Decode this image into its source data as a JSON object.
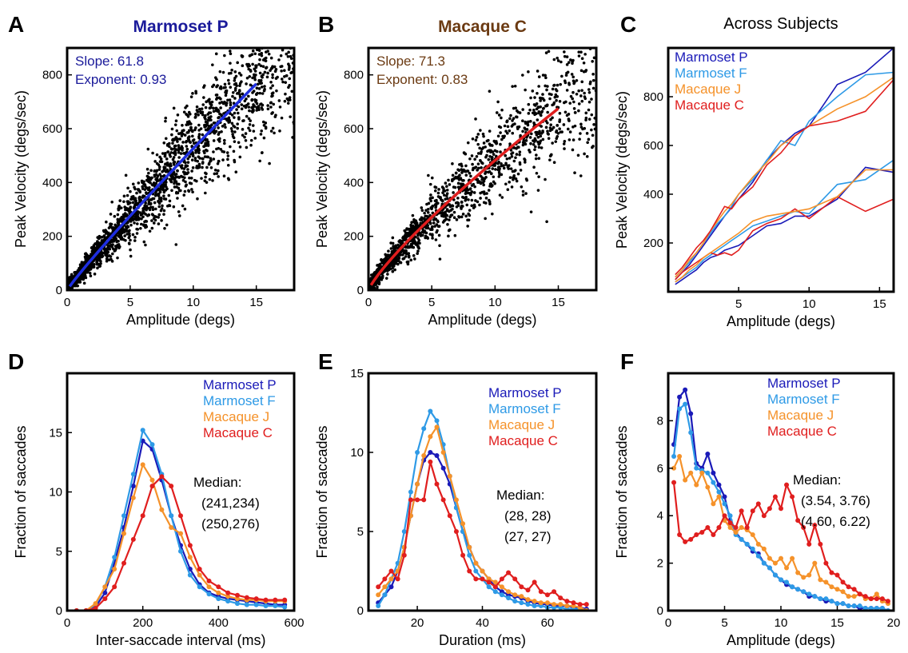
{
  "colors": {
    "marmoset_p": "#1a1ab8",
    "marmoset_f": "#2e9ae6",
    "macaque_j": "#f5922a",
    "macaque_c": "#e01e1e",
    "panel_a_title": "#1a1a9a",
    "panel_b_title": "#6b3a12",
    "fit_a": "#1e2ee0",
    "fit_b": "#e01e1e",
    "text": "#000000"
  },
  "chart_data": [
    {
      "id": "A",
      "type": "scatter",
      "panel_letter": "A",
      "title": "Marmoset P",
      "xlabel": "Amplitude (degs)",
      "ylabel": "Peak Velocity (degs/sec)",
      "xlim": [
        0,
        18
      ],
      "ylim": [
        0,
        900
      ],
      "xticks": [
        0,
        5,
        10,
        15
      ],
      "yticks": [
        0,
        200,
        400,
        600,
        800
      ],
      "annotation": [
        "Slope:  61.8",
        "Exponent: 0.93"
      ],
      "fit": {
        "slope": 61.8,
        "exponent": 0.93,
        "xmin": 0.2,
        "xmax": 15
      },
      "scatter": {
        "n": 2200,
        "xmax": 18,
        "scale": 1.0,
        "note_points": "dense cloud around the fit line"
      }
    },
    {
      "id": "B",
      "type": "scatter",
      "panel_letter": "B",
      "title": "Macaque C",
      "xlabel": "Amplitude (degs)",
      "ylabel": "Peak Velocity (degs/sec)",
      "xlim": [
        0,
        18
      ],
      "ylim": [
        0,
        900
      ],
      "xticks": [
        0,
        5,
        10,
        15
      ],
      "yticks": [
        0,
        200,
        400,
        600,
        800
      ],
      "annotation": [
        "Slope:  71.3",
        "Exponent: 0.83"
      ],
      "fit": {
        "slope": 71.3,
        "exponent": 0.83,
        "xmin": 0.2,
        "xmax": 15
      },
      "scatter": {
        "n": 1500,
        "xmax": 18,
        "scale": 1.0
      }
    },
    {
      "id": "C",
      "type": "line",
      "panel_letter": "C",
      "title": "Across Subjects",
      "xlabel": "Amplitude (degs)",
      "ylabel": "Peak Velocity (degs/sec)",
      "xlim": [
        0,
        16
      ],
      "ylim": [
        0,
        1000
      ],
      "xticks": [
        5,
        10,
        15
      ],
      "yticks": [
        200,
        400,
        600,
        800
      ],
      "legend": [
        "Marmoset P",
        "Marmoset F",
        "Macaque J",
        "Macaque C"
      ],
      "x": [
        0.5,
        1,
        1.5,
        2,
        2.5,
        3,
        3.5,
        4,
        4.5,
        5,
        6,
        7,
        8,
        9,
        10,
        12,
        14,
        16
      ],
      "series": [
        {
          "name": "Marmoset P",
          "color_key": "marmoset_p",
          "upper": [
            50,
            80,
            110,
            150,
            190,
            230,
            270,
            310,
            345,
            380,
            450,
            540,
            600,
            650,
            680,
            850,
            900,
            1000
          ],
          "lower": [
            30,
            50,
            70,
            90,
            120,
            140,
            150,
            170,
            180,
            190,
            230,
            270,
            280,
            310,
            310,
            380,
            510,
            490
          ]
        },
        {
          "name": "Marmoset F",
          "color_key": "marmoset_f",
          "upper": [
            60,
            90,
            120,
            160,
            200,
            240,
            280,
            310,
            350,
            400,
            460,
            540,
            620,
            600,
            700,
            800,
            890,
            900
          ],
          "lower": [
            40,
            60,
            80,
            100,
            130,
            150,
            170,
            190,
            210,
            230,
            270,
            290,
            310,
            330,
            320,
            440,
            460,
            540
          ]
        },
        {
          "name": "Macaque J",
          "color_key": "macaque_j",
          "upper": [
            60,
            90,
            130,
            160,
            200,
            250,
            290,
            330,
            360,
            400,
            470,
            530,
            600,
            640,
            680,
            750,
            800,
            880
          ]
        },
        {
          "name": "Macaque C",
          "color_key": "macaque_c",
          "upper": [
            70,
            100,
            140,
            180,
            210,
            250,
            300,
            350,
            340,
            380,
            430,
            520,
            570,
            640,
            680,
            700,
            740,
            870
          ],
          "lower": [
            50,
            80,
            100,
            120,
            140,
            160,
            150,
            160,
            150,
            170,
            250,
            280,
            300,
            340,
            300,
            390,
            330,
            380
          ]
        }
      ],
      "extra_lower_j": [
        40,
        60,
        90,
        110,
        140,
        160,
        180,
        200,
        220,
        240,
        290,
        310,
        320,
        330,
        340,
        390,
        500,
        500
      ]
    },
    {
      "id": "D",
      "type": "line",
      "panel_letter": "D",
      "xlabel": "Inter-saccade interval (ms)",
      "ylabel": "Fraction of saccades",
      "xlim": [
        0,
        600
      ],
      "ylim": [
        0,
        20
      ],
      "xticks": [
        0,
        200,
        400,
        600
      ],
      "yticks": [
        0,
        5,
        10,
        15
      ],
      "legend": [
        "Marmoset P",
        "Marmoset F",
        "Macaque J",
        "Macaque C"
      ],
      "median_label": "Median:",
      "median_lines": [
        "(241,234)",
        "(250,276)"
      ],
      "x": [
        25,
        50,
        75,
        100,
        125,
        150,
        175,
        200,
        225,
        250,
        275,
        300,
        325,
        350,
        375,
        400,
        425,
        450,
        475,
        500,
        525,
        550,
        575
      ],
      "series": [
        {
          "name": "Marmoset P",
          "color_key": "marmoset_p",
          "values": [
            0,
            0,
            0.3,
            1.5,
            4,
            7,
            10.5,
            14.3,
            13.6,
            11,
            8,
            5.5,
            3.5,
            2.2,
            1.5,
            1.2,
            1,
            0.9,
            0.8,
            0.7,
            0.6,
            0.5,
            0.5
          ]
        },
        {
          "name": "Marmoset F",
          "color_key": "marmoset_f",
          "values": [
            0,
            0,
            0.5,
            2,
            4.5,
            8,
            11.5,
            15.2,
            14,
            11.5,
            8,
            5,
            3,
            2,
            1.4,
            1,
            0.8,
            0.6,
            0.5,
            0.5,
            0.4,
            0.4,
            0.3
          ]
        },
        {
          "name": "Macaque J",
          "color_key": "macaque_j",
          "values": [
            0,
            0,
            0.6,
            2,
            3.5,
            6.5,
            9.5,
            12.3,
            11,
            8.5,
            7,
            6.5,
            4.5,
            3,
            2,
            1.5,
            1.2,
            1,
            0.9,
            0.9,
            0.8,
            0.8,
            0.8
          ]
        },
        {
          "name": "Macaque C",
          "color_key": "macaque_c",
          "values": [
            0,
            0,
            0.2,
            1,
            2,
            4,
            6,
            8,
            10.5,
            11.3,
            10.5,
            8,
            5.5,
            3.5,
            2.5,
            2,
            1.5,
            1.3,
            1.1,
            1,
            0.9,
            0.9,
            0.9
          ]
        }
      ]
    },
    {
      "id": "E",
      "type": "line",
      "panel_letter": "E",
      "xlabel": "Duration (ms)",
      "ylabel": "Fraction of saccades",
      "xlim": [
        5,
        75
      ],
      "ylim": [
        0,
        15
      ],
      "xticks": [
        20,
        40,
        60
      ],
      "yticks": [
        0,
        5,
        10,
        15
      ],
      "legend": [
        "Marmoset P",
        "Marmoset F",
        "Macaque J",
        "Macaque C"
      ],
      "median_label": "Median:",
      "median_lines": [
        "(28, 28)",
        "(27, 27)"
      ],
      "x": [
        8,
        10,
        12,
        14,
        16,
        18,
        20,
        22,
        24,
        26,
        28,
        30,
        32,
        34,
        36,
        38,
        40,
        42,
        44,
        46,
        48,
        50,
        52,
        54,
        56,
        58,
        60,
        62,
        64,
        66,
        68,
        70,
        72
      ],
      "series": [
        {
          "name": "Marmoset P",
          "color_key": "marmoset_p",
          "values": [
            0.5,
            1,
            1.5,
            2.5,
            4,
            6,
            8,
            9.5,
            10,
            9.8,
            9,
            8,
            6.5,
            5,
            4,
            3,
            2.5,
            2,
            1.5,
            1.2,
            1,
            0.9,
            0.8,
            0.6,
            0.5,
            0.4,
            0.4,
            0.3,
            0.3,
            0.3,
            0.2,
            0.2,
            0.1
          ]
        },
        {
          "name": "Marmoset F",
          "color_key": "marmoset_f",
          "values": [
            0.3,
            1,
            2,
            3,
            5,
            7.5,
            10,
            11.5,
            12.6,
            12,
            10.5,
            8.5,
            6.5,
            5,
            3.5,
            2.5,
            2,
            1.5,
            1.2,
            1,
            0.8,
            0.6,
            0.5,
            0.4,
            0.3,
            0.3,
            0.2,
            0.2,
            0.2,
            0.1,
            0.1,
            0.1,
            0
          ]
        },
        {
          "name": "Macaque J",
          "color_key": "macaque_j",
          "values": [
            1,
            1.5,
            2,
            2.5,
            4,
            6,
            8,
            9.8,
            11,
            11.6,
            10,
            8.5,
            7,
            5.5,
            4,
            3,
            2.5,
            2,
            1.8,
            1.5,
            1.2,
            1,
            0.9,
            0.7,
            0.6,
            0.5,
            0.5,
            0.4,
            0.4,
            0.3,
            0.3,
            0.2,
            0
          ]
        },
        {
          "name": "Macaque C",
          "color_key": "macaque_c",
          "values": [
            1.5,
            2,
            2.5,
            2,
            3.5,
            7,
            7,
            7,
            9.4,
            8,
            7,
            6,
            5,
            3.5,
            2.5,
            2,
            2,
            1.8,
            1.5,
            2,
            2.4,
            2,
            1.5,
            1.3,
            1.8,
            1.2,
            1,
            1.2,
            0.8,
            0.6,
            0.5,
            0.4,
            0.4
          ]
        }
      ]
    },
    {
      "id": "F",
      "type": "line",
      "panel_letter": "F",
      "xlabel": "Amplitude (degs)",
      "ylabel": "Fraction of saccades",
      "xlim": [
        0,
        20
      ],
      "ylim": [
        0,
        10
      ],
      "xticks": [
        0,
        5,
        10,
        15,
        20
      ],
      "yticks": [
        0,
        2,
        4,
        6,
        8
      ],
      "legend": [
        "Marmoset P",
        "Marmoset F",
        "Macaque J",
        "Macaque C"
      ],
      "median_label": "Median:",
      "median_lines": [
        "(3.54, 3.76)",
        "(4.60, 6.22)"
      ],
      "x": [
        0.5,
        1,
        1.5,
        2,
        2.5,
        3,
        3.5,
        4,
        4.5,
        5,
        5.5,
        6,
        6.5,
        7,
        7.5,
        8,
        8.5,
        9,
        9.5,
        10,
        10.5,
        11,
        11.5,
        12,
        12.5,
        13,
        13.5,
        14,
        14.5,
        15,
        15.5,
        16,
        16.5,
        17,
        17.5,
        18,
        18.5,
        19,
        19.5
      ],
      "series": [
        {
          "name": "Marmoset P",
          "color_key": "marmoset_p",
          "values": [
            7,
            9,
            9.3,
            8.3,
            6.2,
            6,
            6.6,
            5.8,
            5.3,
            4.8,
            3.8,
            3.3,
            3,
            2.8,
            2.5,
            2.4,
            2,
            1.8,
            1.5,
            1.3,
            1.1,
            1,
            0.9,
            0.8,
            0.6,
            0.6,
            0.5,
            0.4,
            0.4,
            0.3,
            0.3,
            0.2,
            0.2,
            0.1,
            0.1,
            0.1,
            0.1,
            0.1,
            0
          ]
        },
        {
          "name": "Marmoset F",
          "color_key": "marmoset_f",
          "values": [
            6.5,
            8.5,
            8.7,
            7.5,
            6,
            5.9,
            5.8,
            5.4,
            5,
            4.5,
            4,
            3.2,
            3,
            2.8,
            2.6,
            2.3,
            2,
            1.8,
            1.5,
            1.3,
            1.2,
            1,
            0.9,
            0.8,
            0.7,
            0.6,
            0.5,
            0.5,
            0.4,
            0.3,
            0.3,
            0.2,
            0.2,
            0.2,
            0.1,
            0.1,
            0.1,
            0.1,
            0
          ]
        },
        {
          "name": "Macaque J",
          "color_key": "macaque_j",
          "values": [
            6,
            6.5,
            5.5,
            5.8,
            5.3,
            5.8,
            5.2,
            4.5,
            4.8,
            3.8,
            3.5,
            3.3,
            3.5,
            3.4,
            3.2,
            2.8,
            2.6,
            2.2,
            2,
            2.2,
            1.8,
            2.2,
            1.6,
            1.4,
            1.5,
            2,
            1.3,
            1.2,
            1,
            0.9,
            0.8,
            0.6,
            0.6,
            0.7,
            0.5,
            0.5,
            0.7,
            0.4,
            0.3
          ]
        },
        {
          "name": "Macaque C",
          "color_key": "macaque_c",
          "values": [
            5.4,
            3.2,
            2.9,
            3,
            3.2,
            3.3,
            3.5,
            3.2,
            3.5,
            4,
            3.7,
            3.5,
            4.2,
            3.5,
            4.2,
            4.5,
            4,
            4.3,
            4.8,
            4.3,
            5.3,
            4.8,
            3.8,
            3.5,
            2.8,
            3.6,
            2.8,
            2,
            1.6,
            1.5,
            1.2,
            1,
            0.9,
            0.7,
            0.6,
            0.5,
            0.5,
            0.5,
            0.4
          ]
        }
      ]
    }
  ]
}
